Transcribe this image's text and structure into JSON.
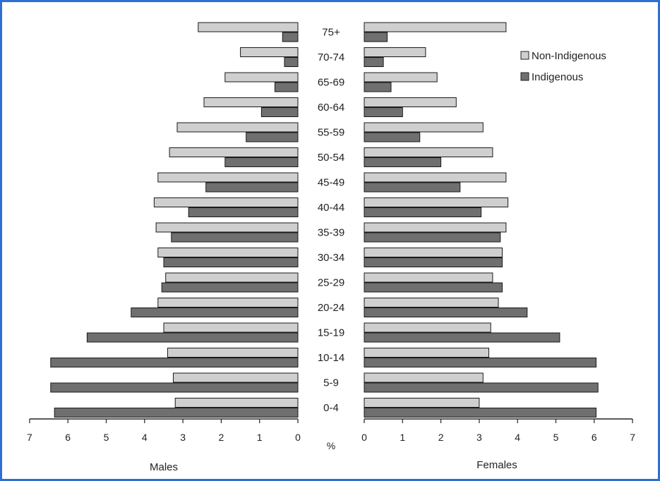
{
  "chart_data": {
    "type": "bar",
    "orientation": "horizontal",
    "layout": "population-pyramid",
    "categories": [
      "0-4",
      "5-9",
      "10-14",
      "15-19",
      "20-24",
      "25-29",
      "30-34",
      "35-39",
      "40-44",
      "45-49",
      "50-54",
      "55-59",
      "60-64",
      "65-69",
      "70-74",
      "75+"
    ],
    "series": [
      {
        "name": "Non-Indigenous",
        "color": "#cfcfcf",
        "males": [
          3.2,
          3.25,
          3.4,
          3.5,
          3.65,
          3.45,
          3.65,
          3.7,
          3.75,
          3.65,
          3.35,
          3.15,
          2.45,
          1.9,
          1.5,
          2.6
        ],
        "females": [
          3.0,
          3.1,
          3.25,
          3.3,
          3.5,
          3.35,
          3.6,
          3.7,
          3.75,
          3.7,
          3.35,
          3.1,
          2.4,
          1.9,
          1.6,
          3.7
        ]
      },
      {
        "name": "Indigenous",
        "color": "#6f6f6f",
        "males": [
          6.35,
          6.45,
          6.45,
          5.5,
          4.35,
          3.55,
          3.5,
          3.3,
          2.85,
          2.4,
          1.9,
          1.35,
          0.95,
          0.6,
          0.35,
          0.4
        ],
        "females": [
          6.05,
          6.1,
          6.05,
          5.1,
          4.25,
          3.6,
          3.6,
          3.55,
          3.05,
          2.5,
          2.0,
          1.45,
          1.0,
          0.7,
          0.5,
          0.6
        ]
      }
    ],
    "x_ticks": [
      "7",
      "6",
      "5",
      "4",
      "3",
      "2",
      "1",
      "0"
    ],
    "x_ticks_right": [
      "0",
      "1",
      "2",
      "3",
      "4",
      "5",
      "6",
      "7"
    ],
    "xlim": [
      0,
      7
    ],
    "x_unit": "%",
    "left_title": "Males",
    "right_title": "Females",
    "legend_placement": "top-right",
    "grid": false
  }
}
